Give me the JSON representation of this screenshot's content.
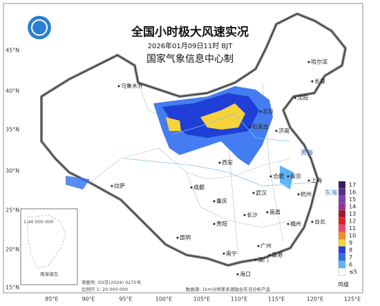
{
  "header": {
    "title": "全国小时极大风速实况",
    "time": "2026年01月09日11时 BJT",
    "agency": "国家气象信息中心制"
  },
  "lat_labels": [
    "45°N",
    "40°N",
    "35°N",
    "30°N",
    "25°N",
    "20°N",
    "15°N"
  ],
  "lon_labels": [
    "85°E",
    "90°E",
    "95°E",
    "100°E",
    "105°E",
    "110°E",
    "115°E",
    "120°E",
    "125°E"
  ],
  "legend": {
    "title": "风级",
    "items": [
      {
        "label": "17",
        "color": "#3b1763"
      },
      {
        "label": "16",
        "color": "#5a2a8c"
      },
      {
        "label": "15",
        "color": "#7a3fb0"
      },
      {
        "label": "14",
        "color": "#a02a9a"
      },
      {
        "label": "13",
        "color": "#9c1a2a"
      },
      {
        "label": "12",
        "color": "#d9222a"
      },
      {
        "label": "11",
        "color": "#f0456a"
      },
      {
        "label": "10",
        "color": "#f28c1c"
      },
      {
        "label": "9",
        "color": "#f7d23a"
      },
      {
        "label": "8",
        "color": "#1f3fd6"
      },
      {
        "label": "7",
        "color": "#2f6ff0"
      },
      {
        "label": "6",
        "color": "#5fb4f5"
      },
      {
        "label": "≤5",
        "color": "#ffffff"
      }
    ]
  },
  "cities": [
    "哈尔滨",
    "长春",
    "沈阳",
    "乌鲁木齐",
    "北京",
    "石家庄",
    "济南",
    "西安",
    "合肥",
    "南京",
    "上海",
    "杭州",
    "武汉",
    "成都",
    "重庆",
    "长沙",
    "南昌",
    "福州",
    "贵阳",
    "昆明",
    "拉萨",
    "南宁",
    "广州",
    "澳门",
    "香港",
    "台北",
    "海口"
  ],
  "seas": [
    "黄海",
    "东海"
  ],
  "inset": {
    "title": "南海诸岛",
    "scale": "1:40 000 000"
  },
  "footer": {
    "approval": "审图号: GS京(2024) 0275号",
    "scale": "比例尺 1: 20 000 000",
    "source": "数据源: 1km分辨率多源融合实况分析产品"
  }
}
